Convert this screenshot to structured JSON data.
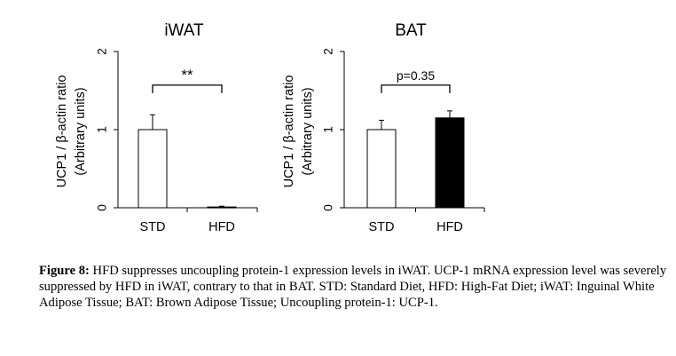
{
  "chart_data": [
    {
      "type": "bar",
      "title": "iWAT",
      "ylabel_line1": "UCP1 / β-actin ratio",
      "ylabel_line2": "(Arbitrary units)",
      "categories": [
        "STD",
        "HFD"
      ],
      "values": [
        1.0,
        0.01
      ],
      "errors": [
        0.19,
        0.01
      ],
      "bar_colors": [
        "#ffffff",
        "#000000"
      ],
      "ylim": [
        0,
        2
      ],
      "yticks": [
        "0",
        "1",
        "2"
      ],
      "annotation": "**",
      "grid": false
    },
    {
      "type": "bar",
      "title": "BAT",
      "ylabel_line1": "UCP1 / β-actin ratio",
      "ylabel_line2": "(Arbitrary units)",
      "categories": [
        "STD",
        "HFD"
      ],
      "values": [
        1.0,
        1.15
      ],
      "errors": [
        0.12,
        0.09
      ],
      "bar_colors": [
        "#ffffff",
        "#000000"
      ],
      "ylim": [
        0,
        2
      ],
      "yticks": [
        "0",
        "1",
        "2"
      ],
      "annotation": "p=0.35",
      "grid": false
    }
  ],
  "caption": {
    "label": "Figure 8:",
    "text": " HFD suppresses uncoupling protein-1 expression levels in iWAT. UCP-1 mRNA expression level was severely suppressed by HFD in iWAT, contrary to that in BAT. STD: Standard Diet, HFD: High-Fat Diet; iWAT: Inguinal White Adipose Tissue; BAT: Brown Adipose Tissue; Uncoupling protein-1: UCP-1."
  }
}
